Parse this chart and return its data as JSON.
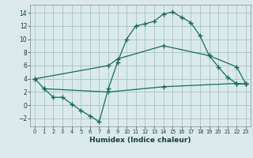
{
  "xlabel": "Humidex (Indice chaleur)",
  "background_color": "#daeaea",
  "grid_color": "#aacaca",
  "line_color": "#1a6b5a",
  "xlim": [
    -0.5,
    23.5
  ],
  "ylim": [
    -3.2,
    15.2
  ],
  "xticks": [
    0,
    1,
    2,
    3,
    4,
    5,
    6,
    7,
    8,
    9,
    10,
    11,
    12,
    13,
    14,
    15,
    16,
    17,
    18,
    19,
    20,
    21,
    22,
    23
  ],
  "yticks": [
    -2,
    0,
    2,
    4,
    6,
    8,
    10,
    12,
    14
  ],
  "line1_x": [
    0,
    1,
    2,
    3,
    4,
    5,
    6,
    7,
    8,
    9,
    10,
    11,
    12,
    13,
    14,
    15,
    16,
    17,
    18,
    19,
    20,
    21,
    22,
    23
  ],
  "line1_y": [
    4.0,
    2.5,
    1.2,
    1.2,
    0.2,
    -0.8,
    -1.6,
    -2.5,
    2.5,
    6.5,
    10.0,
    12.0,
    12.3,
    12.7,
    13.8,
    14.1,
    13.3,
    12.5,
    10.5,
    7.5,
    5.8,
    4.2,
    3.3,
    3.2
  ],
  "line2_x": [
    0,
    8,
    9,
    14,
    19,
    22,
    23
  ],
  "line2_y": [
    4.0,
    6.0,
    7.0,
    9.0,
    7.5,
    5.8,
    3.2
  ],
  "line3_x": [
    1,
    8,
    14,
    22,
    23
  ],
  "line3_y": [
    2.5,
    2.0,
    2.8,
    3.3,
    3.2
  ]
}
